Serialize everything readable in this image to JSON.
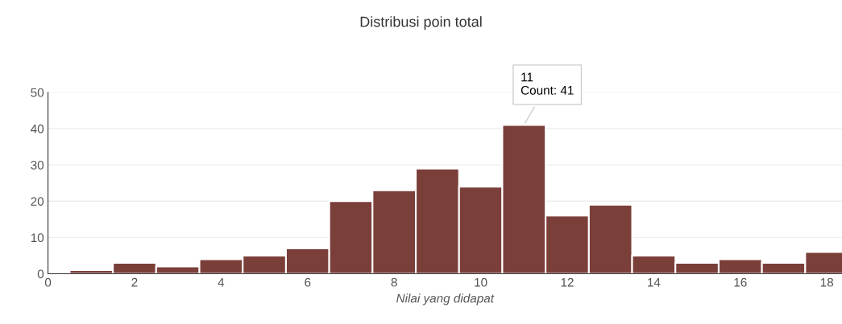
{
  "chart_data": {
    "type": "histogram",
    "title": "Distribusi poin total",
    "xlabel": "Nilai yang didapat",
    "bins": [
      0.5,
      1.5,
      2.5,
      3.5,
      4.5,
      5.5,
      6.5,
      7.5,
      8.5,
      9.5,
      10.5,
      11.5,
      12.5,
      13.5,
      14.5,
      15.5,
      16.5,
      17.5,
      18.5
    ],
    "values": [
      1,
      3,
      2,
      4,
      5,
      7,
      20,
      23,
      29,
      24,
      41,
      16,
      19,
      5,
      3,
      4,
      3,
      6
    ],
    "color": "#7b3f3a",
    "xlim": [
      0,
      18.35
    ],
    "xticks": [
      0,
      2,
      4,
      6,
      8,
      10,
      12,
      14,
      16,
      18
    ],
    "ylim": [
      0,
      50
    ],
    "yticks": [
      0,
      10,
      20,
      30,
      40,
      50
    ],
    "grid": "y",
    "annotations": [
      {
        "text": "11\nCount: 41",
        "x": 11,
        "y": 41
      }
    ]
  }
}
